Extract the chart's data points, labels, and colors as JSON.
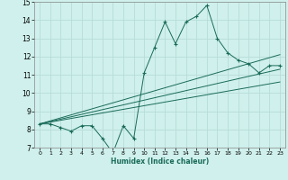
{
  "xlabel": "Humidex (Indice chaleur)",
  "bg_color": "#cff0ec",
  "grid_color": "#b8dcd8",
  "line_color": "#1a6b5a",
  "xlim": [
    -0.5,
    23.5
  ],
  "ylim": [
    7,
    15
  ],
  "xticks": [
    0,
    1,
    2,
    3,
    4,
    5,
    6,
    7,
    8,
    9,
    10,
    11,
    12,
    13,
    14,
    15,
    16,
    17,
    18,
    19,
    20,
    21,
    22,
    23
  ],
  "yticks": [
    7,
    8,
    9,
    10,
    11,
    12,
    13,
    14,
    15
  ],
  "main_x": [
    0,
    1,
    2,
    3,
    4,
    5,
    6,
    7,
    8,
    9,
    10,
    11,
    12,
    13,
    14,
    15,
    16,
    17,
    18,
    19,
    20,
    21,
    22,
    23
  ],
  "main_y": [
    8.3,
    8.3,
    8.1,
    7.9,
    8.2,
    8.2,
    7.5,
    6.7,
    8.2,
    7.5,
    11.1,
    12.5,
    13.9,
    12.7,
    13.9,
    14.2,
    14.8,
    13.0,
    12.2,
    11.8,
    11.6,
    11.1,
    11.5,
    11.5
  ],
  "line2_x": [
    0,
    23
  ],
  "line2_y": [
    8.3,
    12.1
  ],
  "line3_x": [
    0,
    23
  ],
  "line3_y": [
    8.3,
    11.3
  ],
  "line4_x": [
    0,
    23
  ],
  "line4_y": [
    8.3,
    10.6
  ]
}
